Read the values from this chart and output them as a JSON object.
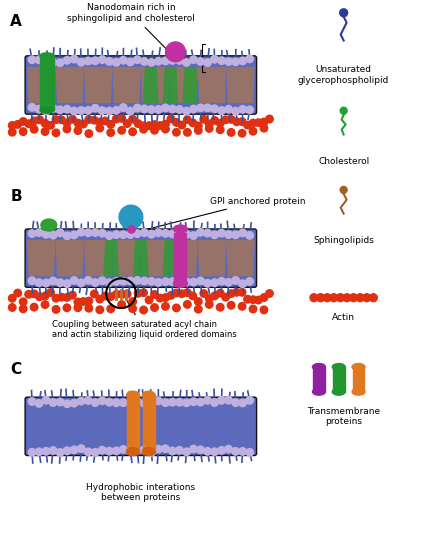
{
  "bg_color": "#ffffff",
  "membrane_colors": {
    "lipid_blue": "#3a4fa0",
    "lipid_orange": "#c87832",
    "lipid_green": "#3a8c3a",
    "actin_red": "#e03010",
    "head_lavender": "#c8b4e0",
    "nanodomain_purple": "#9b30c0",
    "protein_green": "#2db030",
    "protein_orange": "#e07820",
    "protein_cyan": "#30a0c0",
    "protein_magenta": "#c030a0"
  },
  "labels": {
    "A": "A",
    "B": "B",
    "C": "C",
    "nanodomain": "Nanodomain rich in\nsphingolipid and cholesterol",
    "gpi": "GPI anchored protein",
    "coupling": "Coupling between saturated acyl chain\nand actin stabilizing liquid ordered domains",
    "hydrophobic": "Hydrophobic interations\nbetween proteins",
    "legend_1": "Unsaturated\nglycerophospholipid",
    "legend_2": "Cholesterol",
    "legend_3": "Sphingolipids",
    "legend_4": "Actin",
    "legend_5": "Transmembrane\nproteins"
  }
}
